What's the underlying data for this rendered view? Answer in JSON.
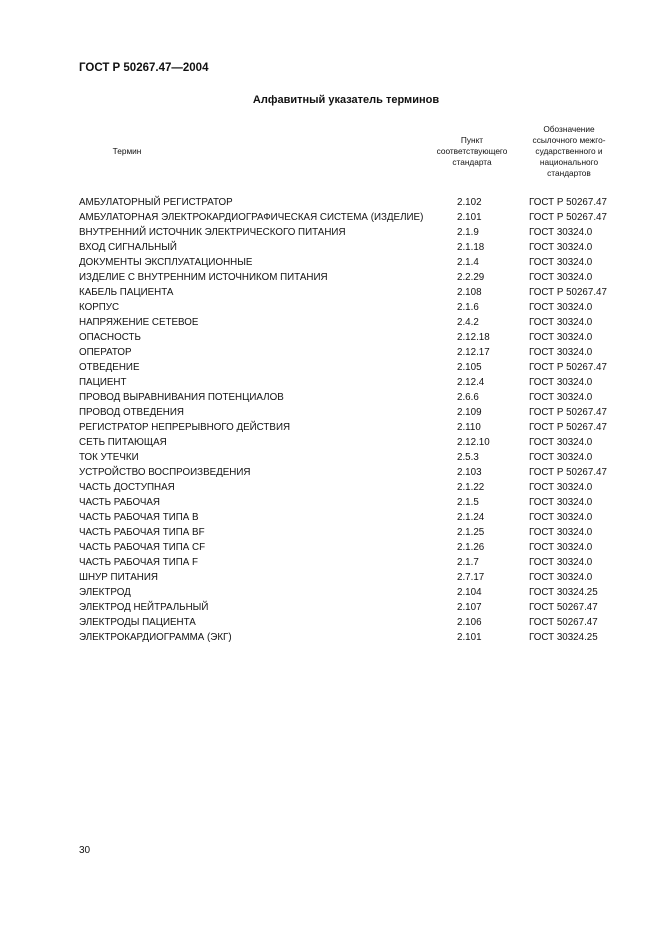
{
  "header": {
    "doc_code": "ГОСТ Р 50267.47—2004"
  },
  "title": "Алфавитный указатель терминов",
  "columns": {
    "term": [
      "Термин"
    ],
    "clause": [
      "Пункт",
      "соответствующего",
      "стандарта"
    ],
    "standard": [
      "Обозначение",
      "ссылочного межго-",
      "сударственного и",
      "национального",
      "стандартов"
    ]
  },
  "rows": [
    [
      "АМБУЛАТОРНЫЙ  РЕГИСТРАТОР",
      "2.102",
      "ГОСТ Р 50267.47"
    ],
    [
      "АМБУЛАТОРНАЯ ЭЛЕКТРОКАРДИОГРАФИЧЕСКАЯ СИСТЕМА (ИЗДЕЛИЕ)",
      "2.101",
      "ГОСТ Р 50267.47"
    ],
    [
      "ВНУТРЕННИЙ ИСТОЧНИК ЭЛЕКТРИЧЕСКОГО ПИТАНИЯ",
      "2.1.9",
      "ГОСТ 30324.0"
    ],
    [
      "ВХОД СИГНАЛЬНЫЙ",
      "2.1.18",
      "ГОСТ 30324.0"
    ],
    [
      "ДОКУМЕНТЫ ЭКСПЛУАТАЦИОННЫЕ",
      "2.1.4",
      "ГОСТ 30324.0"
    ],
    [
      "ИЗДЕЛИЕ С ВНУТРЕННИМ ИСТОЧНИКОМ ПИТАНИЯ",
      "2.2.29",
      "ГОСТ 30324.0"
    ],
    [
      "КАБЕЛЬ ПАЦИЕНТА",
      "2.108",
      "ГОСТ Р 50267.47"
    ],
    [
      "КОРПУС",
      "2.1.6",
      "ГОСТ 30324.0"
    ],
    [
      "НАПРЯЖЕНИЕ СЕТЕВОЕ",
      "2.4.2",
      "ГОСТ 30324.0"
    ],
    [
      "ОПАСНОСТЬ",
      "2.12.18",
      "ГОСТ 30324.0"
    ],
    [
      "ОПЕРАТОР",
      "2.12.17",
      "ГОСТ 30324.0"
    ],
    [
      "ОТВЕДЕНИЕ",
      "2.105",
      "ГОСТ Р 50267.47"
    ],
    [
      "ПАЦИЕНТ",
      "2.12.4",
      "ГОСТ 30324.0"
    ],
    [
      "ПРОВОД ВЫРАВНИВАНИЯ ПОТЕНЦИАЛОВ",
      "2.6.6",
      "ГОСТ 30324.0"
    ],
    [
      "ПРОВОД ОТВЕДЕНИЯ",
      "2.109",
      "ГОСТ Р 50267.47"
    ],
    [
      "РЕГИСТРАТОР НЕПРЕРЫВНОГО ДЕЙСТВИЯ",
      "2.110",
      "ГОСТ Р 50267.47"
    ],
    [
      "СЕТЬ ПИТАЮЩАЯ",
      "2.12.10",
      "ГОСТ 30324.0"
    ],
    [
      "ТОК УТЕЧКИ",
      "2.5.3",
      "ГОСТ 30324.0"
    ],
    [
      "УСТРОЙСТВО ВОСПРОИЗВЕДЕНИЯ",
      "2.103",
      "ГОСТ Р 50267.47"
    ],
    [
      "ЧАСТЬ ДОСТУПНАЯ",
      "2.1.22",
      "ГОСТ 30324.0"
    ],
    [
      "ЧАСТЬ РАБОЧАЯ",
      "2.1.5",
      "ГОСТ 30324.0"
    ],
    [
      "ЧАСТЬ РАБОЧАЯ ТИПА В",
      "2.1.24",
      "ГОСТ 30324.0"
    ],
    [
      "ЧАСТЬ РАБОЧАЯ ТИПА BF",
      "2.1.25",
      "ГОСТ 30324.0"
    ],
    [
      "ЧАСТЬ РАБОЧАЯ ТИПА CF",
      "2.1.26",
      "ГОСТ 30324.0"
    ],
    [
      "ЧАСТЬ РАБОЧАЯ ТИПА F",
      "2.1.7",
      "ГОСТ 30324.0"
    ],
    [
      "ШНУР ПИТАНИЯ",
      "2.7.17",
      "ГОСТ 30324.0"
    ],
    [
      "ЭЛЕКТРОД",
      "2.104",
      "ГОСТ 30324.25"
    ],
    [
      "ЭЛЕКТРОД НЕЙТРАЛЬНЫЙ",
      "2.107",
      "ГОСТ 50267.47"
    ],
    [
      "ЭЛЕКТРОДЫ ПАЦИЕНТА",
      "2.106",
      "ГОСТ 50267.47"
    ],
    [
      "ЭЛЕКТРОКАРДИОГРАММА (ЭКГ)",
      "2.101",
      "ГОСТ 30324.25"
    ]
  ],
  "footer": {
    "page_number": "30"
  }
}
